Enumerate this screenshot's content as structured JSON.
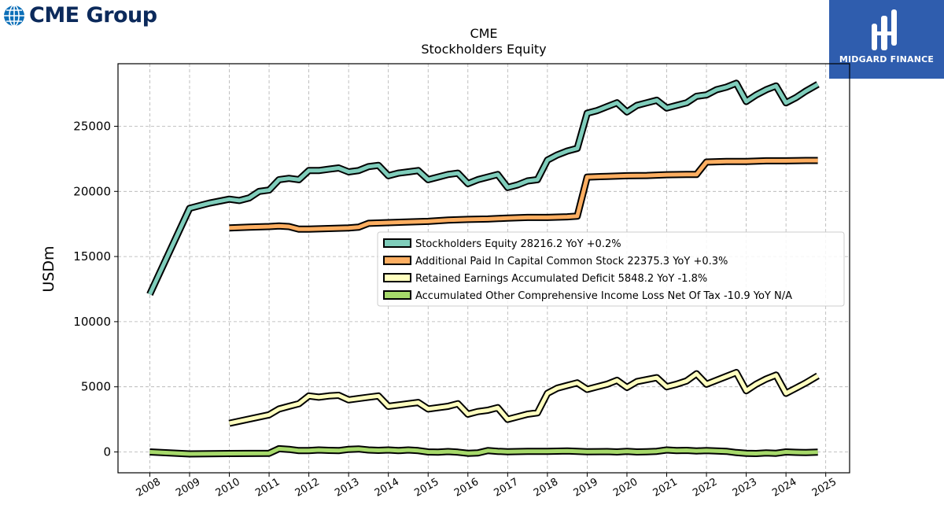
{
  "branding": {
    "cme_logo_text": "CME Group",
    "midgard_logo_text": "MIDGARD FINANCE",
    "cme_color": "#0c2a5b",
    "midgard_color": "#2f5dae"
  },
  "chart_data": {
    "type": "line",
    "title": "CME",
    "subtitle": "Stockholders  Equity",
    "ylabel": "USDm",
    "xlabel": "",
    "ylim": [
      -1600,
      29800
    ],
    "xlim": [
      2007.2,
      2025.6
    ],
    "yticks": [
      0,
      5000,
      10000,
      15000,
      20000,
      25000
    ],
    "xticks": [
      "2008",
      "2009",
      "2010",
      "2011",
      "2012",
      "2013",
      "2014",
      "2015",
      "2016",
      "2017",
      "2018",
      "2019",
      "2020",
      "2021",
      "2022",
      "2023",
      "2024",
      "2025"
    ],
    "grid": true,
    "legend_position": "center-right",
    "series": [
      {
        "name": "Stockholders Equity",
        "legend": "Stockholders Equity  28216.2 YoY +0.2%",
        "color": "#7fcdbb",
        "points": [
          [
            2008.0,
            12100
          ],
          [
            2009.0,
            18700
          ],
          [
            2009.5,
            19100
          ],
          [
            2010.0,
            19400
          ],
          [
            2010.25,
            19300
          ],
          [
            2010.5,
            19500
          ],
          [
            2010.75,
            20000
          ],
          [
            2011.0,
            20100
          ],
          [
            2011.25,
            20900
          ],
          [
            2011.5,
            21000
          ],
          [
            2011.75,
            20900
          ],
          [
            2012.0,
            21600
          ],
          [
            2012.25,
            21600
          ],
          [
            2012.5,
            21700
          ],
          [
            2012.75,
            21800
          ],
          [
            2013.0,
            21500
          ],
          [
            2013.25,
            21600
          ],
          [
            2013.5,
            21900
          ],
          [
            2013.75,
            22000
          ],
          [
            2014.0,
            21200
          ],
          [
            2014.25,
            21400
          ],
          [
            2014.5,
            21500
          ],
          [
            2014.75,
            21600
          ],
          [
            2015.0,
            20900
          ],
          [
            2015.25,
            21100
          ],
          [
            2015.5,
            21300
          ],
          [
            2015.75,
            21400
          ],
          [
            2016.0,
            20600
          ],
          [
            2016.25,
            20900
          ],
          [
            2016.5,
            21100
          ],
          [
            2016.75,
            21300
          ],
          [
            2017.0,
            20300
          ],
          [
            2017.25,
            20500
          ],
          [
            2017.5,
            20800
          ],
          [
            2017.75,
            20900
          ],
          [
            2018.0,
            22400
          ],
          [
            2018.25,
            22800
          ],
          [
            2018.5,
            23100
          ],
          [
            2018.75,
            23300
          ],
          [
            2019.0,
            26000
          ],
          [
            2019.25,
            26200
          ],
          [
            2019.5,
            26500
          ],
          [
            2019.75,
            26800
          ],
          [
            2020.0,
            26100
          ],
          [
            2020.25,
            26600
          ],
          [
            2020.5,
            26800
          ],
          [
            2020.75,
            27000
          ],
          [
            2021.0,
            26400
          ],
          [
            2021.25,
            26600
          ],
          [
            2021.5,
            26800
          ],
          [
            2021.75,
            27300
          ],
          [
            2022.0,
            27400
          ],
          [
            2022.25,
            27800
          ],
          [
            2022.5,
            28000
          ],
          [
            2022.75,
            28300
          ],
          [
            2023.0,
            26900
          ],
          [
            2023.25,
            27400
          ],
          [
            2023.5,
            27800
          ],
          [
            2023.75,
            28100
          ],
          [
            2024.0,
            26800
          ],
          [
            2024.25,
            27200
          ],
          [
            2024.5,
            27700
          ],
          [
            2024.8,
            28216.2
          ]
        ]
      },
      {
        "name": "Additional Paid In Capital Common Stock",
        "legend": "Additional Paid In Capital Common Stock  22375.3 YoY +0.3%",
        "color": "#fdae61",
        "points": [
          [
            2010.0,
            17200
          ],
          [
            2010.5,
            17250
          ],
          [
            2011.0,
            17300
          ],
          [
            2011.25,
            17350
          ],
          [
            2011.5,
            17300
          ],
          [
            2011.75,
            17100
          ],
          [
            2012.0,
            17100
          ],
          [
            2012.5,
            17150
          ],
          [
            2013.0,
            17200
          ],
          [
            2013.25,
            17250
          ],
          [
            2013.5,
            17550
          ],
          [
            2014.0,
            17600
          ],
          [
            2015.0,
            17700
          ],
          [
            2015.5,
            17800
          ],
          [
            2016.0,
            17850
          ],
          [
            2016.5,
            17880
          ],
          [
            2017.0,
            17950
          ],
          [
            2017.5,
            18000
          ],
          [
            2018.0,
            18000
          ],
          [
            2018.5,
            18050
          ],
          [
            2018.75,
            18100
          ],
          [
            2019.0,
            21100
          ],
          [
            2019.5,
            21150
          ],
          [
            2020.0,
            21200
          ],
          [
            2020.5,
            21220
          ],
          [
            2021.0,
            21280
          ],
          [
            2021.5,
            21300
          ],
          [
            2021.75,
            21300
          ],
          [
            2022.0,
            22250
          ],
          [
            2022.5,
            22300
          ],
          [
            2023.0,
            22300
          ],
          [
            2023.5,
            22350
          ],
          [
            2024.0,
            22350
          ],
          [
            2024.5,
            22370
          ],
          [
            2024.8,
            22375.3
          ]
        ]
      },
      {
        "name": "Retained Earnings Accumulated Deficit",
        "legend": "Retained Earnings Accumulated Deficit  5848.2 YoY -1.8%",
        "color": "#ffffbf",
        "points": [
          [
            2010.0,
            2200
          ],
          [
            2011.0,
            2850
          ],
          [
            2011.25,
            3300
          ],
          [
            2011.5,
            3500
          ],
          [
            2011.75,
            3700
          ],
          [
            2012.0,
            4300
          ],
          [
            2012.25,
            4200
          ],
          [
            2012.5,
            4300
          ],
          [
            2012.75,
            4350
          ],
          [
            2013.0,
            4000
          ],
          [
            2013.25,
            4100
          ],
          [
            2013.5,
            4200
          ],
          [
            2013.75,
            4300
          ],
          [
            2014.0,
            3500
          ],
          [
            2014.25,
            3600
          ],
          [
            2014.5,
            3700
          ],
          [
            2014.75,
            3800
          ],
          [
            2015.0,
            3300
          ],
          [
            2015.25,
            3400
          ],
          [
            2015.5,
            3500
          ],
          [
            2015.75,
            3700
          ],
          [
            2016.0,
            2900
          ],
          [
            2016.25,
            3100
          ],
          [
            2016.5,
            3200
          ],
          [
            2016.75,
            3400
          ],
          [
            2017.0,
            2500
          ],
          [
            2017.25,
            2700
          ],
          [
            2017.5,
            2900
          ],
          [
            2017.75,
            3000
          ],
          [
            2018.0,
            4500
          ],
          [
            2018.25,
            4900
          ],
          [
            2018.5,
            5100
          ],
          [
            2018.75,
            5300
          ],
          [
            2019.0,
            4800
          ],
          [
            2019.25,
            5000
          ],
          [
            2019.5,
            5200
          ],
          [
            2019.75,
            5500
          ],
          [
            2020.0,
            4950
          ],
          [
            2020.25,
            5400
          ],
          [
            2020.5,
            5550
          ],
          [
            2020.75,
            5700
          ],
          [
            2021.0,
            5000
          ],
          [
            2021.25,
            5200
          ],
          [
            2021.5,
            5450
          ],
          [
            2021.75,
            6000
          ],
          [
            2022.0,
            5200
          ],
          [
            2022.25,
            5500
          ],
          [
            2022.5,
            5800
          ],
          [
            2022.75,
            6100
          ],
          [
            2023.0,
            4700
          ],
          [
            2023.25,
            5200
          ],
          [
            2023.5,
            5600
          ],
          [
            2023.75,
            5900
          ],
          [
            2024.0,
            4500
          ],
          [
            2024.25,
            4900
          ],
          [
            2024.5,
            5300
          ],
          [
            2024.8,
            5848.2
          ]
        ]
      },
      {
        "name": "Accumulated Other Comprehensive Income Loss Net Of Tax",
        "legend": "Accumulated Other Comprehensive Income Loss Net Of Tax  -10.9 YoY N/A",
        "color": "#a6d96a",
        "points": [
          [
            2008.0,
            0
          ],
          [
            2009.0,
            -150
          ],
          [
            2010.0,
            -120
          ],
          [
            2011.0,
            -100
          ],
          [
            2011.25,
            250
          ],
          [
            2011.5,
            200
          ],
          [
            2011.75,
            100
          ],
          [
            2012.0,
            100
          ],
          [
            2012.25,
            150
          ],
          [
            2012.5,
            120
          ],
          [
            2012.75,
            100
          ],
          [
            2013.0,
            200
          ],
          [
            2013.25,
            230
          ],
          [
            2013.5,
            150
          ],
          [
            2013.75,
            120
          ],
          [
            2014.0,
            150
          ],
          [
            2014.25,
            100
          ],
          [
            2014.5,
            150
          ],
          [
            2014.75,
            100
          ],
          [
            2015.0,
            0
          ],
          [
            2015.25,
            -20
          ],
          [
            2015.5,
            30
          ],
          [
            2015.75,
            -20
          ],
          [
            2016.0,
            -100
          ],
          [
            2016.25,
            -80
          ],
          [
            2016.5,
            100
          ],
          [
            2016.75,
            50
          ],
          [
            2017.0,
            20
          ],
          [
            2017.5,
            50
          ],
          [
            2018.0,
            50
          ],
          [
            2018.5,
            70
          ],
          [
            2019.0,
            20
          ],
          [
            2019.5,
            30
          ],
          [
            2019.75,
            0
          ],
          [
            2020.0,
            50
          ],
          [
            2020.25,
            0
          ],
          [
            2020.5,
            20
          ],
          [
            2020.75,
            50
          ],
          [
            2021.0,
            150
          ],
          [
            2021.25,
            100
          ],
          [
            2021.5,
            120
          ],
          [
            2021.75,
            80
          ],
          [
            2022.0,
            100
          ],
          [
            2022.25,
            80
          ],
          [
            2022.5,
            50
          ],
          [
            2022.75,
            -50
          ],
          [
            2023.0,
            -100
          ],
          [
            2023.25,
            -120
          ],
          [
            2023.5,
            -80
          ],
          [
            2023.75,
            -100
          ],
          [
            2024.0,
            0
          ],
          [
            2024.25,
            -30
          ],
          [
            2024.5,
            -50
          ],
          [
            2024.8,
            -10.9
          ]
        ]
      }
    ]
  }
}
